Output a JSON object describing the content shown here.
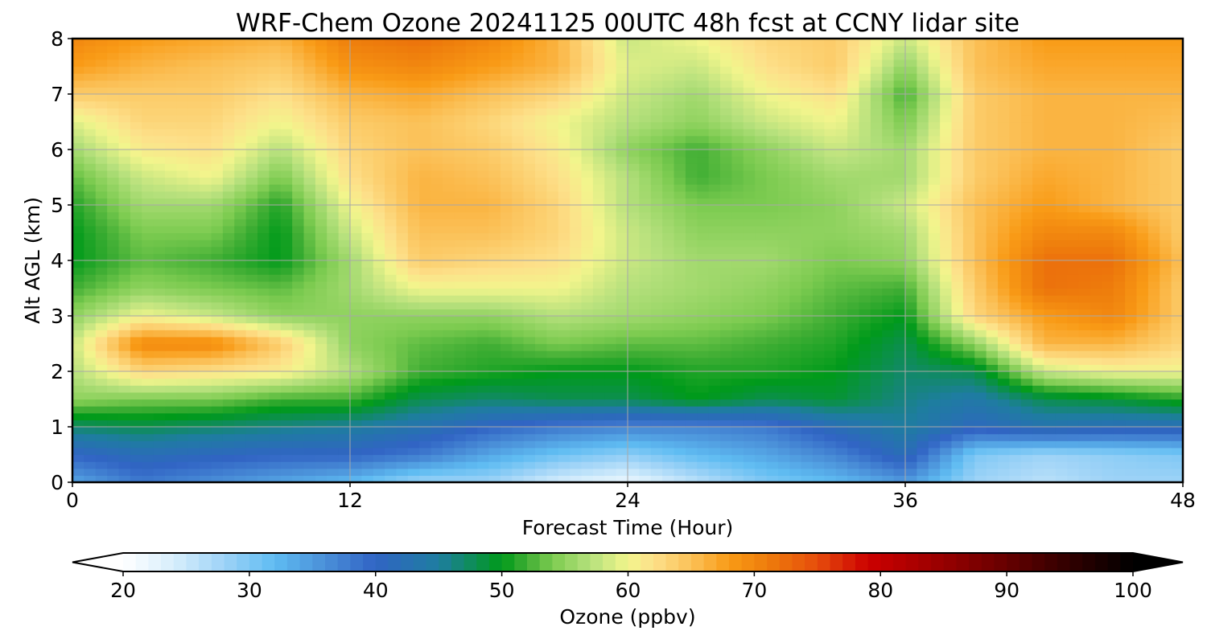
{
  "chart_data": {
    "type": "heatmap",
    "title": "WRF-Chem Ozone  20241125 00UTC 48h fcst at CCNY lidar site",
    "xlabel": "Forecast Time (Hour)",
    "ylabel": "Alt AGL (km)",
    "xlim": [
      0,
      48
    ],
    "ylim": [
      0,
      8
    ],
    "xticks": [
      0,
      12,
      24,
      36,
      48
    ],
    "yticks": [
      0,
      1,
      2,
      3,
      4,
      5,
      6,
      7,
      8
    ],
    "grid": true,
    "x_hours": [
      0,
      3,
      6,
      9,
      12,
      15,
      18,
      21,
      24,
      27,
      30,
      33,
      36,
      39,
      42,
      45,
      48
    ],
    "y_km": [
      0,
      0.5,
      1,
      1.5,
      2,
      2.5,
      3,
      3.5,
      4,
      4.5,
      5,
      5.5,
      6,
      6.5,
      7,
      7.5,
      8
    ],
    "values_ppbv": [
      [
        34,
        38,
        36,
        34,
        32,
        28,
        28,
        24,
        22,
        26,
        30,
        32,
        35,
        28,
        26,
        28,
        28
      ],
      [
        40,
        42,
        41,
        40,
        40,
        38,
        34,
        31,
        29,
        32,
        34,
        37,
        42,
        30,
        28,
        29,
        30
      ],
      [
        47,
        48,
        47,
        46,
        45,
        43,
        40,
        38,
        37,
        37,
        38,
        42,
        45,
        41,
        43,
        42,
        42
      ],
      [
        55,
        54,
        54,
        52,
        52,
        48,
        47,
        48,
        48,
        50,
        48,
        49,
        46,
        44,
        48,
        49,
        51
      ],
      [
        57,
        63,
        62,
        61,
        57,
        52,
        51,
        50,
        50,
        51,
        51,
        50,
        47,
        48,
        58,
        60,
        60
      ],
      [
        58,
        70,
        70,
        64,
        55,
        53,
        52,
        54,
        53,
        53,
        52,
        51,
        48,
        55,
        66,
        66,
        63
      ],
      [
        55,
        60,
        58,
        55,
        55,
        55,
        55,
        57,
        56,
        55,
        54,
        52,
        50,
        63,
        68,
        70,
        64
      ],
      [
        52,
        55,
        54,
        53,
        56,
        60,
        60,
        60,
        57,
        56,
        55,
        53,
        52,
        64,
        72,
        71,
        64
      ],
      [
        50,
        53,
        52,
        50,
        56,
        64,
        63,
        62,
        58,
        56,
        56,
        54,
        55,
        65,
        72,
        72,
        65
      ],
      [
        50,
        54,
        54,
        50,
        58,
        65,
        65,
        63,
        58,
        55,
        55,
        55,
        56,
        65,
        70,
        70,
        64
      ],
      [
        51,
        56,
        56,
        51,
        60,
        66,
        66,
        63,
        57,
        54,
        54,
        55,
        58,
        65,
        68,
        66,
        64
      ],
      [
        53,
        58,
        60,
        54,
        62,
        66,
        65,
        62,
        57,
        52,
        54,
        56,
        56,
        64,
        67,
        66,
        64
      ],
      [
        56,
        61,
        62,
        57,
        63,
        65,
        64,
        61,
        55,
        52,
        55,
        58,
        56,
        64,
        66,
        66,
        64
      ],
      [
        59,
        63,
        63,
        60,
        64,
        65,
        63,
        60,
        57,
        55,
        58,
        60,
        54,
        64,
        66,
        66,
        65
      ],
      [
        64,
        64,
        64,
        62,
        66,
        67,
        65,
        63,
        58,
        56,
        60,
        62,
        52,
        64,
        66,
        66,
        66
      ],
      [
        68,
        66,
        65,
        64,
        69,
        70,
        68,
        66,
        59,
        58,
        62,
        64,
        55,
        65,
        67,
        67,
        67
      ],
      [
        70,
        68,
        67,
        66,
        71,
        72,
        70,
        66,
        58,
        60,
        63,
        64,
        58,
        65,
        68,
        68,
        68
      ]
    ],
    "colorbar": {
      "label": "Ozone  (ppbv)",
      "min": 20,
      "max": 100,
      "ticks": [
        20,
        30,
        40,
        50,
        60,
        70,
        80,
        90,
        100
      ],
      "extend": "both",
      "colors": [
        "#ffffff",
        "#d7eefc",
        "#9ed3f7",
        "#5fbcf2",
        "#4a8fd8",
        "#3164c4",
        "#1e7da0",
        "#009a1a",
        "#40ae34",
        "#7ccb50",
        "#b5e07c",
        "#f2f58c",
        "#fde08a",
        "#fbc158",
        "#f99b16",
        "#ee7d0c",
        "#e64d0c",
        "#cc0000",
        "#a00000",
        "#700000",
        "#3a0000",
        "#000000"
      ],
      "color_stops": [
        20,
        24,
        28,
        32,
        36,
        40,
        45,
        50,
        52,
        54,
        57,
        60,
        62,
        65,
        68,
        71,
        75,
        79,
        84,
        89,
        94,
        100
      ]
    }
  }
}
